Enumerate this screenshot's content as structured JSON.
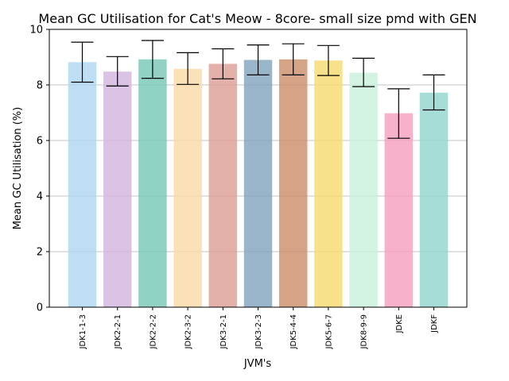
{
  "chart_data": {
    "type": "bar",
    "title": "Mean GC Utilisation for Cat's Meow - 8core- small size pmd with GEN",
    "xlabel": "JVM's",
    "ylabel": "Mean GC Utilisation (%)",
    "ylim": [
      0,
      10
    ],
    "yticks": [
      0,
      2,
      4,
      6,
      8,
      10
    ],
    "grid": "y",
    "legend": "none",
    "categories": [
      "JDK1-1-3",
      "JDK2-2-1",
      "JDK2-2-2",
      "JDK2-3-2",
      "JDK3-2-1",
      "JDK3-2-3",
      "JDK5-4-4",
      "JDK5-6-7",
      "JDK8-9-9",
      "JDKE",
      "JDKF"
    ],
    "values": [
      8.82,
      8.48,
      8.92,
      8.58,
      8.76,
      8.9,
      8.92,
      8.88,
      8.44,
      6.98,
      7.72
    ],
    "error_low": [
      8.1,
      7.96,
      8.24,
      8.02,
      8.22,
      8.36,
      8.36,
      8.34,
      7.94,
      6.08,
      7.1
    ],
    "error_high": [
      9.54,
      9.02,
      9.6,
      9.16,
      9.3,
      9.44,
      9.48,
      9.42,
      8.96,
      7.86,
      8.36
    ],
    "colors": [
      "#AED6F1",
      "#D2B4DE",
      "#76C7B7",
      "#F9D9A6",
      "#DC9D95",
      "#7FA2BD",
      "#C98D66",
      "#F5D96E",
      "#C8F0DC",
      "#F59EBD",
      "#90D5CD"
    ]
  }
}
